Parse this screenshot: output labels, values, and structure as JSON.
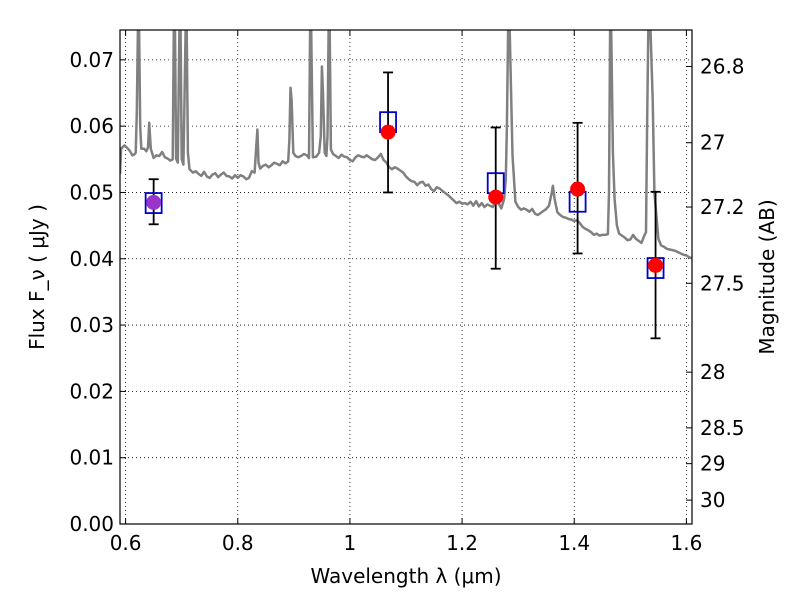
{
  "chart_data": {
    "type": "scatter",
    "xlabel": "Wavelength  λ (μm)",
    "ylabel": "Flux  F_ν  ( μJy )",
    "ylabel_right": "Magnitude (AB)",
    "xlim": [
      0.59,
      1.61
    ],
    "ylim": [
      0.0,
      0.0745
    ],
    "x_ticks": [
      {
        "value": 0.6,
        "label": "0.6"
      },
      {
        "value": 0.8,
        "label": "0.8"
      },
      {
        "value": 1.0,
        "label": "1"
      },
      {
        "value": 1.2,
        "label": "1.2"
      },
      {
        "value": 1.4,
        "label": "1.4"
      },
      {
        "value": 1.6,
        "label": "1.6"
      }
    ],
    "y_ticks": [
      {
        "value": 0.0,
        "label": "0.00"
      },
      {
        "value": 0.01,
        "label": "0.01"
      },
      {
        "value": 0.02,
        "label": "0.02"
      },
      {
        "value": 0.03,
        "label": "0.03"
      },
      {
        "value": 0.04,
        "label": "0.04"
      },
      {
        "value": 0.05,
        "label": "0.05"
      },
      {
        "value": 0.06,
        "label": "0.06"
      },
      {
        "value": 0.07,
        "label": "0.07"
      }
    ],
    "right_ticks": [
      {
        "label": "26.8",
        "flux": 0.069
      },
      {
        "label": "27",
        "flux": 0.0575
      },
      {
        "label": "27.2",
        "flux": 0.0478
      },
      {
        "label": "27.5",
        "flux": 0.0363
      },
      {
        "label": "28",
        "flux": 0.0229
      },
      {
        "label": "28.5",
        "flux": 0.0145
      },
      {
        "label": "29",
        "flux": 0.0091
      },
      {
        "label": "30",
        "flux": 0.0036
      }
    ],
    "grid": true,
    "model_spectrum": {
      "color": "#808080",
      "points": [
        [
          0.59,
          0.0528
        ],
        [
          0.592,
          0.0566
        ],
        [
          0.598,
          0.0571
        ],
        [
          0.603,
          0.0567
        ],
        [
          0.608,
          0.0562
        ],
        [
          0.612,
          0.0556
        ],
        [
          0.615,
          0.0557
        ],
        [
          0.618,
          0.056
        ],
        [
          0.62,
          0.062
        ],
        [
          0.622,
          0.0745
        ],
        [
          0.624,
          0.0745
        ],
        [
          0.626,
          0.06
        ],
        [
          0.628,
          0.0566
        ],
        [
          0.633,
          0.0566
        ],
        [
          0.637,
          0.0562
        ],
        [
          0.64,
          0.0568
        ],
        [
          0.642,
          0.0605
        ],
        [
          0.645,
          0.0566
        ],
        [
          0.65,
          0.0552
        ],
        [
          0.655,
          0.0556
        ],
        [
          0.66,
          0.0555
        ],
        [
          0.665,
          0.0561
        ],
        [
          0.67,
          0.0553
        ],
        [
          0.675,
          0.0551
        ],
        [
          0.68,
          0.0548
        ],
        [
          0.684,
          0.055
        ],
        [
          0.686,
          0.0745
        ],
        [
          0.688,
          0.0745
        ],
        [
          0.69,
          0.0551
        ],
        [
          0.693,
          0.0545
        ],
        [
          0.696,
          0.0745
        ],
        [
          0.698,
          0.0745
        ],
        [
          0.7,
          0.055
        ],
        [
          0.703,
          0.0542
        ],
        [
          0.705,
          0.064
        ],
        [
          0.707,
          0.0745
        ],
        [
          0.709,
          0.0745
        ],
        [
          0.711,
          0.056
        ],
        [
          0.714,
          0.0535
        ],
        [
          0.72,
          0.053
        ],
        [
          0.725,
          0.0532
        ],
        [
          0.73,
          0.0528
        ],
        [
          0.735,
          0.0525
        ],
        [
          0.74,
          0.0531
        ],
        [
          0.745,
          0.0524
        ],
        [
          0.75,
          0.0522
        ],
        [
          0.755,
          0.0527
        ],
        [
          0.76,
          0.0529
        ],
        [
          0.765,
          0.0523
        ],
        [
          0.77,
          0.0527
        ],
        [
          0.775,
          0.053
        ],
        [
          0.78,
          0.0525
        ],
        [
          0.785,
          0.0524
        ],
        [
          0.79,
          0.0521
        ],
        [
          0.795,
          0.0526
        ],
        [
          0.8,
          0.0522
        ],
        [
          0.805,
          0.0526
        ],
        [
          0.81,
          0.0524
        ],
        [
          0.815,
          0.052
        ],
        [
          0.82,
          0.0522
        ],
        [
          0.825,
          0.0532
        ],
        [
          0.83,
          0.053
        ],
        [
          0.833,
          0.057
        ],
        [
          0.835,
          0.0595
        ],
        [
          0.837,
          0.0545
        ],
        [
          0.84,
          0.0536
        ],
        [
          0.845,
          0.054
        ],
        [
          0.85,
          0.0542
        ],
        [
          0.855,
          0.0538
        ],
        [
          0.86,
          0.0541
        ],
        [
          0.865,
          0.0545
        ],
        [
          0.87,
          0.0543
        ],
        [
          0.875,
          0.0541
        ],
        [
          0.88,
          0.0547
        ],
        [
          0.885,
          0.0544
        ],
        [
          0.89,
          0.0547
        ],
        [
          0.892,
          0.058
        ],
        [
          0.894,
          0.0658
        ],
        [
          0.896,
          0.064
        ],
        [
          0.899,
          0.056
        ],
        [
          0.903,
          0.0555
        ],
        [
          0.908,
          0.0553
        ],
        [
          0.913,
          0.0555
        ],
        [
          0.918,
          0.0558
        ],
        [
          0.923,
          0.0556
        ],
        [
          0.927,
          0.0552
        ],
        [
          0.929,
          0.0745
        ],
        [
          0.931,
          0.0745
        ],
        [
          0.934,
          0.0553
        ],
        [
          0.94,
          0.0554
        ],
        [
          0.945,
          0.056
        ],
        [
          0.948,
          0.0585
        ],
        [
          0.95,
          0.069
        ],
        [
          0.952,
          0.065
        ],
        [
          0.955,
          0.056
        ],
        [
          0.958,
          0.0555
        ],
        [
          0.96,
          0.0585
        ],
        [
          0.962,
          0.0745
        ],
        [
          0.964,
          0.0745
        ],
        [
          0.966,
          0.0565
        ],
        [
          0.97,
          0.0558
        ],
        [
          0.975,
          0.0555
        ],
        [
          0.98,
          0.0552
        ],
        [
          0.985,
          0.0557
        ],
        [
          0.99,
          0.0554
        ],
        [
          0.995,
          0.0553
        ],
        [
          1.0,
          0.0549
        ],
        [
          1.005,
          0.0547
        ],
        [
          1.01,
          0.0553
        ],
        [
          1.015,
          0.0556
        ],
        [
          1.02,
          0.0554
        ],
        [
          1.025,
          0.0553
        ],
        [
          1.03,
          0.0556
        ],
        [
          1.035,
          0.0553
        ],
        [
          1.04,
          0.055
        ],
        [
          1.045,
          0.0549
        ],
        [
          1.05,
          0.0553
        ],
        [
          1.055,
          0.0558
        ],
        [
          1.06,
          0.0549
        ],
        [
          1.065,
          0.0545
        ],
        [
          1.07,
          0.0538
        ],
        [
          1.075,
          0.0535
        ],
        [
          1.08,
          0.0538
        ],
        [
          1.085,
          0.0536
        ],
        [
          1.09,
          0.0533
        ],
        [
          1.095,
          0.053
        ],
        [
          1.1,
          0.0524
        ],
        [
          1.105,
          0.052
        ],
        [
          1.11,
          0.0517
        ],
        [
          1.115,
          0.0516
        ],
        [
          1.12,
          0.0511
        ],
        [
          1.125,
          0.0515
        ],
        [
          1.13,
          0.0516
        ],
        [
          1.135,
          0.051
        ],
        [
          1.14,
          0.0512
        ],
        [
          1.145,
          0.0505
        ],
        [
          1.15,
          0.0502
        ],
        [
          1.155,
          0.0508
        ],
        [
          1.16,
          0.0506
        ],
        [
          1.165,
          0.0502
        ],
        [
          1.17,
          0.0499
        ],
        [
          1.175,
          0.0496
        ],
        [
          1.18,
          0.0492
        ],
        [
          1.185,
          0.0488
        ],
        [
          1.19,
          0.0484
        ],
        [
          1.195,
          0.0486
        ],
        [
          1.2,
          0.0483
        ],
        [
          1.205,
          0.0484
        ],
        [
          1.21,
          0.0482
        ],
        [
          1.215,
          0.0486
        ],
        [
          1.22,
          0.048
        ],
        [
          1.225,
          0.0487
        ],
        [
          1.23,
          0.0479
        ],
        [
          1.235,
          0.0484
        ],
        [
          1.24,
          0.0478
        ],
        [
          1.245,
          0.0482
        ],
        [
          1.25,
          0.048
        ],
        [
          1.255,
          0.0478
        ],
        [
          1.26,
          0.0488
        ],
        [
          1.265,
          0.0484
        ],
        [
          1.27,
          0.0476
        ],
        [
          1.275,
          0.049
        ],
        [
          1.278,
          0.052
        ],
        [
          1.28,
          0.06
        ],
        [
          1.282,
          0.0745
        ],
        [
          1.285,
          0.0745
        ],
        [
          1.29,
          0.0556
        ],
        [
          1.295,
          0.0486
        ],
        [
          1.3,
          0.0478
        ],
        [
          1.305,
          0.0474
        ],
        [
          1.31,
          0.0476
        ],
        [
          1.315,
          0.0474
        ],
        [
          1.32,
          0.0471
        ],
        [
          1.325,
          0.0475
        ],
        [
          1.33,
          0.0468
        ],
        [
          1.335,
          0.0466
        ],
        [
          1.34,
          0.0469
        ],
        [
          1.345,
          0.0472
        ],
        [
          1.35,
          0.0475
        ],
        [
          1.355,
          0.048
        ],
        [
          1.36,
          0.05
        ],
        [
          1.362,
          0.051
        ],
        [
          1.365,
          0.049
        ],
        [
          1.37,
          0.047
        ],
        [
          1.375,
          0.0466
        ],
        [
          1.38,
          0.0463
        ],
        [
          1.385,
          0.0462
        ],
        [
          1.39,
          0.046
        ],
        [
          1.395,
          0.0459
        ],
        [
          1.4,
          0.0457
        ],
        [
          1.405,
          0.0458
        ],
        [
          1.41,
          0.0454
        ],
        [
          1.415,
          0.0448
        ],
        [
          1.42,
          0.0445
        ],
        [
          1.425,
          0.0443
        ],
        [
          1.43,
          0.044
        ],
        [
          1.435,
          0.0436
        ],
        [
          1.44,
          0.0438
        ],
        [
          1.445,
          0.0435
        ],
        [
          1.45,
          0.0436
        ],
        [
          1.455,
          0.0436
        ],
        [
          1.46,
          0.0437
        ],
        [
          1.462,
          0.05
        ],
        [
          1.464,
          0.0745
        ],
        [
          1.466,
          0.0745
        ],
        [
          1.469,
          0.056
        ],
        [
          1.472,
          0.049
        ],
        [
          1.476,
          0.045
        ],
        [
          1.48,
          0.0438
        ],
        [
          1.485,
          0.0435
        ],
        [
          1.49,
          0.0432
        ],
        [
          1.495,
          0.0428
        ],
        [
          1.5,
          0.0429
        ],
        [
          1.505,
          0.0436
        ],
        [
          1.51,
          0.043
        ],
        [
          1.515,
          0.0427
        ],
        [
          1.52,
          0.0424
        ],
        [
          1.525,
          0.0435
        ],
        [
          1.528,
          0.044
        ],
        [
          1.53,
          0.06
        ],
        [
          1.532,
          0.0745
        ],
        [
          1.536,
          0.0745
        ],
        [
          1.54,
          0.064
        ],
        [
          1.543,
          0.05
        ],
        [
          1.547,
          0.046
        ],
        [
          1.55,
          0.043
        ],
        [
          1.555,
          0.042
        ],
        [
          1.56,
          0.0418
        ],
        [
          1.565,
          0.0415
        ],
        [
          1.57,
          0.0414
        ],
        [
          1.575,
          0.0413
        ],
        [
          1.58,
          0.0412
        ],
        [
          1.585,
          0.041
        ],
        [
          1.59,
          0.0408
        ],
        [
          1.595,
          0.0406
        ],
        [
          1.6,
          0.0405
        ],
        [
          1.605,
          0.0402
        ],
        [
          1.61,
          0.0401
        ]
      ]
    },
    "observed": [
      {
        "x": 0.65,
        "y": 0.0485,
        "err_low": 0.0452,
        "err_high": 0.052
      },
      {
        "x": 1.068,
        "y": 0.0591,
        "err_low": 0.05,
        "err_high": 0.0681
      },
      {
        "x": 1.26,
        "y": 0.0493,
        "err_low": 0.0385,
        "err_high": 0.0598
      },
      {
        "x": 1.406,
        "y": 0.0505,
        "err_low": 0.0408,
        "err_high": 0.0605
      },
      {
        "x": 1.545,
        "y": 0.039,
        "err_low": 0.028,
        "err_high": 0.0501
      }
    ],
    "model_photometry": [
      {
        "x": 0.65,
        "y": 0.0484
      },
      {
        "x": 1.068,
        "y": 0.0606
      },
      {
        "x": 1.26,
        "y": 0.0514
      },
      {
        "x": 1.406,
        "y": 0.0486
      },
      {
        "x": 1.545,
        "y": 0.0386
      }
    ],
    "colors": {
      "observed": "#ff0000",
      "model_box": "#0000cc",
      "errorbar": "#000000",
      "first_point_overlap": "#9933cc"
    }
  }
}
